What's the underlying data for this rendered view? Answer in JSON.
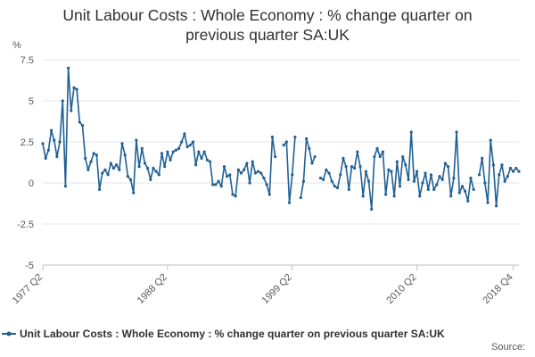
{
  "chart_data": {
    "type": "line",
    "title_line1": "Unit Labour Costs : Whole Economy : % change quarter on",
    "title_line2": "previous quarter SA:UK",
    "ylabel": "%",
    "ylim": [
      -5,
      7.5
    ],
    "yticks": [
      "7.5",
      "5",
      "2.5",
      "0",
      "-2.5",
      "-5"
    ],
    "ytick_values": [
      7.5,
      5,
      2.5,
      0,
      -2.5,
      -5
    ],
    "xtick_labels": [
      "1977 Q2",
      "1988 Q2",
      "1999 Q2",
      "2010 Q2",
      "2018 Q4"
    ],
    "xtick_index": [
      0,
      44,
      88,
      132,
      166
    ],
    "grid": "horizontal",
    "series_color": "#206095",
    "series": [
      {
        "name": "Unit Labour Costs : Whole Economy : % change quarter on previous quarter SA:UK",
        "x_start": "1977 Q2",
        "values": [
          2.4,
          1.5,
          2.0,
          3.2,
          2.6,
          1.6,
          2.5,
          5.0,
          -0.2,
          7.0,
          4.4,
          5.8,
          5.7,
          3.7,
          3.5,
          1.5,
          0.8,
          1.3,
          1.8,
          1.7,
          -0.4,
          0.6,
          0.8,
          0.5,
          1.2,
          0.9,
          1.1,
          0.8,
          2.4,
          1.7,
          0.4,
          0.2,
          -0.6,
          2.6,
          1.0,
          2.1,
          1.2,
          0.9,
          0.2,
          0.9,
          0.7,
          0.5,
          1.8,
          1.0,
          1.9,
          1.4,
          1.9,
          2.0,
          2.1,
          2.5,
          3.0,
          2.2,
          2.3,
          2.5,
          1.1,
          1.9,
          1.5,
          1.9,
          1.4,
          1.3,
          -0.1,
          -0.1,
          0.1,
          -0.2,
          1.0,
          0.4,
          0.5,
          -0.7,
          -0.8,
          0.8,
          0.6,
          0.8,
          1.2,
          0.0,
          1.3,
          0.6,
          0.7,
          0.6,
          0.3,
          -0.1,
          -0.7,
          2.8,
          1.6,
          null,
          null,
          2.3,
          2.5,
          -1.2,
          0.5,
          2.8,
          null,
          -0.9,
          0.1,
          2.7,
          2.1,
          1.2,
          1.6,
          null,
          0.3,
          0.2,
          0.8,
          0.6,
          0.1,
          -0.2,
          -0.3,
          0.5,
          1.5,
          1.0,
          -0.4,
          1.0,
          0.9,
          1.9,
          1.0,
          -0.8,
          0.7,
          0.1,
          -1.6,
          1.6,
          2.1,
          1.6,
          1.9,
          -0.7,
          0.8,
          0.7,
          -0.8,
          1.3,
          -0.2,
          1.6,
          1.1,
          0.2,
          3.1,
          0.1,
          0.7,
          -0.8,
          0.0,
          0.6,
          -0.4,
          0.5,
          -0.4,
          -0.1,
          0.4,
          0.2,
          1.2,
          1.0,
          -0.8,
          0.3,
          3.1,
          -0.6,
          -0.2,
          -0.5,
          -1.1,
          0.3,
          -0.4,
          null,
          0.5,
          1.5,
          0.0,
          -1.2,
          2.6,
          1.1,
          -1.4,
          0.5,
          1.1,
          0.1,
          0.4,
          0.9,
          0.7,
          0.9,
          0.7
        ]
      }
    ],
    "legend_position": "bottom",
    "source_label": "Source:"
  }
}
